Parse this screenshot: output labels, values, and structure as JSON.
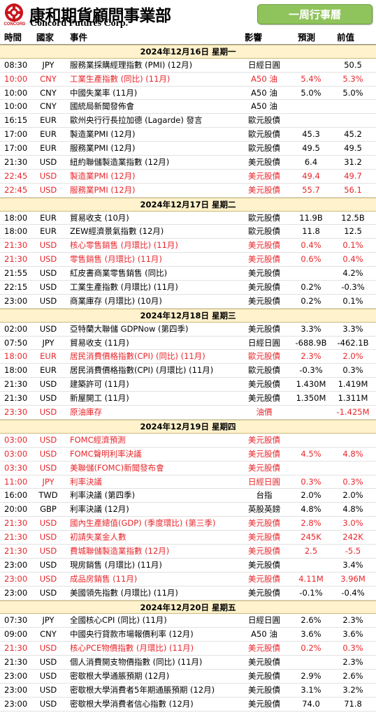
{
  "header": {
    "logo_zh": "康和期貨顧問事業部",
    "logo_en": "Concord Futures Corp.",
    "logo_sub": "CONCORD",
    "badge": "一周行事曆",
    "brand_color": "#c8161d",
    "badge_color": "#8fc35b"
  },
  "columns": {
    "time": "時間",
    "country": "國家",
    "event": "事件",
    "impact": "影響",
    "forecast": "預測",
    "previous": "前值"
  },
  "days": [
    {
      "date": "2024年12月16日  星期一",
      "rows": [
        {
          "time": "08:30",
          "country": "JPY",
          "event": "服務業採購經理指數 (PMI) (12月)",
          "impact": "日經日圓",
          "forecast": "",
          "previous": "50.5",
          "highlight": false
        },
        {
          "time": "10:00",
          "country": "CNY",
          "event": "工業生產指數 (同比) (11月)",
          "impact": "A50 油",
          "forecast": "5.4%",
          "previous": "5.3%",
          "highlight": true
        },
        {
          "time": "10:00",
          "country": "CNY",
          "event": "中國失業率 (11月)",
          "impact": "A50 油",
          "forecast": "5.0%",
          "previous": "5.0%",
          "highlight": false
        },
        {
          "time": "10:00",
          "country": "CNY",
          "event": "國統局新聞發佈會",
          "impact": "A50 油",
          "forecast": "",
          "previous": "",
          "highlight": false
        },
        {
          "time": "16:15",
          "country": "EUR",
          "event": "歐州央行行長拉加德 (Lagarde) 發言",
          "impact": "歐元股債",
          "forecast": "",
          "previous": "",
          "highlight": false
        },
        {
          "time": "17:00",
          "country": "EUR",
          "event": "製造業PMI (12月)",
          "impact": "歐元股債",
          "forecast": "45.3",
          "previous": "45.2",
          "highlight": false
        },
        {
          "time": "17:00",
          "country": "EUR",
          "event": "服務業PMI (12月)",
          "impact": "歐元股債",
          "forecast": "49.5",
          "previous": "49.5",
          "highlight": false
        },
        {
          "time": "21:30",
          "country": "USD",
          "event": "紐約聯儲製造業指數 (12月)",
          "impact": "美元股債",
          "forecast": "6.4",
          "previous": "31.2",
          "highlight": false
        },
        {
          "time": "22:45",
          "country": "USD",
          "event": "製造業PMI (12月)",
          "impact": "美元股債",
          "forecast": "49.4",
          "previous": "49.7",
          "highlight": true
        },
        {
          "time": "22:45",
          "country": "USD",
          "event": "服務業PMI (12月)",
          "impact": "美元股債",
          "forecast": "55.7",
          "previous": "56.1",
          "highlight": true
        }
      ]
    },
    {
      "date": "2024年12月17日  星期二",
      "rows": [
        {
          "time": "18:00",
          "country": "EUR",
          "event": "貿易收支 (10月)",
          "impact": "歐元股債",
          "forecast": "11.9B",
          "previous": "12.5B",
          "highlight": false
        },
        {
          "time": "18:00",
          "country": "EUR",
          "event": "ZEW經濟景氣指數 (12月)",
          "impact": "歐元股債",
          "forecast": "11.8",
          "previous": "12.5",
          "highlight": false
        },
        {
          "time": "21:30",
          "country": "USD",
          "event": "核心零售銷售 (月環比) (11月)",
          "impact": "美元股債",
          "forecast": "0.4%",
          "previous": "0.1%",
          "highlight": true
        },
        {
          "time": "21:30",
          "country": "USD",
          "event": "零售銷售 (月環比) (11月)",
          "impact": "美元股債",
          "forecast": "0.6%",
          "previous": "0.4%",
          "highlight": true
        },
        {
          "time": "21:55",
          "country": "USD",
          "event": "紅皮書商業零售銷售 (同比)",
          "impact": "美元股債",
          "forecast": "",
          "previous": "4.2%",
          "highlight": false
        },
        {
          "time": "22:15",
          "country": "USD",
          "event": "工業生產指數 (月環比) (11月)",
          "impact": "美元股債",
          "forecast": "0.2%",
          "previous": "-0.3%",
          "highlight": false
        },
        {
          "time": "23:00",
          "country": "USD",
          "event": "商業庫存 (月環比) (10月)",
          "impact": "美元股債",
          "forecast": "0.2%",
          "previous": "0.1%",
          "highlight": false
        }
      ]
    },
    {
      "date": "2024年12月18日  星期三",
      "rows": [
        {
          "time": "02:00",
          "country": "USD",
          "event": "亞特蘭大聯儲 GDPNow (第四季)",
          "impact": "美元股債",
          "forecast": "3.3%",
          "previous": "3.3%",
          "highlight": false
        },
        {
          "time": "07:50",
          "country": "JPY",
          "event": "貿易收支 (11月)",
          "impact": "日經日圓",
          "forecast": "-688.9B",
          "previous": "-462.1B",
          "highlight": false
        },
        {
          "time": "18:00",
          "country": "EUR",
          "event": "居民消費價格指數(CPI) (同比) (11月)",
          "impact": "歐元股債",
          "forecast": "2.3%",
          "previous": "2.0%",
          "highlight": true
        },
        {
          "time": "18:00",
          "country": "EUR",
          "event": "居民消費價格指數(CPI) (月環比) (11月)",
          "impact": "歐元股債",
          "forecast": "-0.3%",
          "previous": "0.3%",
          "highlight": false
        },
        {
          "time": "21:30",
          "country": "USD",
          "event": "建築許可 (11月)",
          "impact": "美元股債",
          "forecast": "1.430M",
          "previous": "1.419M",
          "highlight": false
        },
        {
          "time": "21:30",
          "country": "USD",
          "event": "新屋開工 (11月)",
          "impact": "美元股債",
          "forecast": "1.350M",
          "previous": "1.311M",
          "highlight": false
        },
        {
          "time": "23:30",
          "country": "USD",
          "event": "原油庫存",
          "impact": "油價",
          "forecast": "",
          "previous": "-1.425M",
          "highlight": true
        }
      ]
    },
    {
      "date": "2024年12月19日  星期四",
      "rows": [
        {
          "time": "03:00",
          "country": "USD",
          "event": "FOMC經濟預測",
          "impact": "美元股債",
          "forecast": "",
          "previous": "",
          "highlight": true
        },
        {
          "time": "03:00",
          "country": "USD",
          "event": "FOMC聲明利率決議",
          "impact": "美元股債",
          "forecast": "4.5%",
          "previous": "4.8%",
          "highlight": true
        },
        {
          "time": "03:30",
          "country": "USD",
          "event": "美聯儲(FOMC)新聞發布會",
          "impact": "美元股債",
          "forecast": "",
          "previous": "",
          "highlight": true
        },
        {
          "time": "11:00",
          "country": "JPY",
          "event": "利率決議",
          "impact": "日經日圓",
          "forecast": "0.3%",
          "previous": "0.3%",
          "highlight": true
        },
        {
          "time": "16:00",
          "country": "TWD",
          "event": "利率決議 (第四季)",
          "impact": "台指",
          "forecast": "2.0%",
          "previous": "2.0%",
          "highlight": false
        },
        {
          "time": "20:00",
          "country": "GBP",
          "event": "利率決議 (12月)",
          "impact": "英股英鎊",
          "forecast": "4.8%",
          "previous": "4.8%",
          "highlight": false
        },
        {
          "time": "21:30",
          "country": "USD",
          "event": "國內生產總值(GDP) (季度環比) (第三季)",
          "impact": "美元股債",
          "forecast": "2.8%",
          "previous": "3.0%",
          "highlight": true
        },
        {
          "time": "21:30",
          "country": "USD",
          "event": "初請失業金人數",
          "impact": "美元股債",
          "forecast": "245K",
          "previous": "242K",
          "highlight": true
        },
        {
          "time": "21:30",
          "country": "USD",
          "event": "費城聯儲製造業指數 (12月)",
          "impact": "美元股債",
          "forecast": "2.5",
          "previous": "-5.5",
          "highlight": true
        },
        {
          "time": "23:00",
          "country": "USD",
          "event": "現房銷售 (月環比) (11月)",
          "impact": "美元股債",
          "forecast": "",
          "previous": "3.4%",
          "highlight": false
        },
        {
          "time": "23:00",
          "country": "USD",
          "event": "成品房銷售 (11月)",
          "impact": "美元股債",
          "forecast": "4.11M",
          "previous": "3.96M",
          "highlight": true
        },
        {
          "time": "23:00",
          "country": "USD",
          "event": "美國領先指數 (月環比) (11月)",
          "impact": "美元股債",
          "forecast": "-0.1%",
          "previous": "-0.4%",
          "highlight": false
        }
      ]
    },
    {
      "date": "2024年12月20日  星期五",
      "rows": [
        {
          "time": "07:30",
          "country": "JPY",
          "event": "全國核心CPI (同比) (11月)",
          "impact": "日經日圓",
          "forecast": "2.6%",
          "previous": "2.3%",
          "highlight": false
        },
        {
          "time": "09:00",
          "country": "CNY",
          "event": "中國央行貸款市場報價利率 (12月)",
          "impact": "A50 油",
          "forecast": "3.6%",
          "previous": "3.6%",
          "highlight": false
        },
        {
          "time": "21:30",
          "country": "USD",
          "event": "核心PCE物價指數 (月環比) (11月)",
          "impact": "美元股債",
          "forecast": "0.2%",
          "previous": "0.3%",
          "highlight": true
        },
        {
          "time": "21:30",
          "country": "USD",
          "event": "個人消費開支物價指數 (同比) (11月)",
          "impact": "美元股債",
          "forecast": "",
          "previous": "2.3%",
          "highlight": false
        },
        {
          "time": "23:00",
          "country": "USD",
          "event": "密歇根大學通脹預期 (12月)",
          "impact": "美元股債",
          "forecast": "2.9%",
          "previous": "2.6%",
          "highlight": false
        },
        {
          "time": "23:00",
          "country": "USD",
          "event": "密歇根大學消費者5年期通脹預期 (12月)",
          "impact": "美元股債",
          "forecast": "3.1%",
          "previous": "3.2%",
          "highlight": false
        },
        {
          "time": "23:00",
          "country": "USD",
          "event": "密歇根大學消費者信心指數 (12月)",
          "impact": "美元股債",
          "forecast": "74.0",
          "previous": "71.8",
          "highlight": false
        }
      ]
    }
  ]
}
